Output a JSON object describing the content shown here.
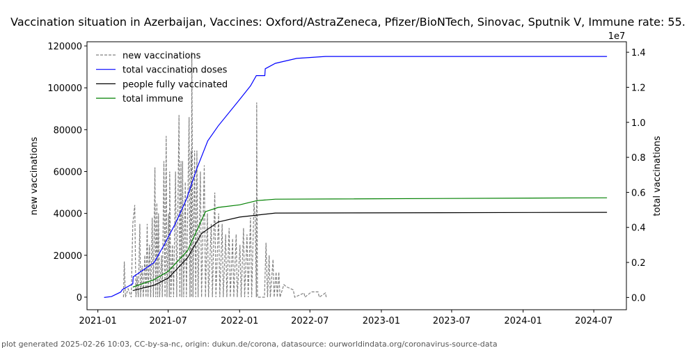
{
  "chart_data": {
    "type": "line",
    "title": "Vaccination situation in Azerbaijan, Vaccines: Oxford/AstraZeneca, Pfizer/BioNTech, Sinovac, Sputnik V, Immune rate: 55.",
    "xlabel": "",
    "ylabel_left": "new vaccinations",
    "ylabel_right": "total vaccinations",
    "right_axis_multiplier": "1e7",
    "ylim_left": [
      -6000,
      122000
    ],
    "ylim_right": [
      -700000,
      14600000
    ],
    "xlim": [
      "2020-12-04",
      "2024-09-23"
    ],
    "x_ticks": [
      "2021-01",
      "2021-07",
      "2022-01",
      "2022-07",
      "2023-01",
      "2023-07",
      "2024-01",
      "2024-07"
    ],
    "y_ticks_left": [
      "0",
      "20000",
      "40000",
      "60000",
      "80000",
      "100000",
      "120000"
    ],
    "y_ticks_right": [
      "0.0",
      "0.2",
      "0.4",
      "0.6",
      "0.8",
      "1.0",
      "1.2",
      "1.4"
    ],
    "grid": false,
    "legend": "top-left",
    "legend_entries": [
      "new vaccinations",
      "total vaccination doses",
      "people fully vaccinated",
      "total immune"
    ],
    "series": [
      {
        "name": "new vaccinations",
        "axis": "left",
        "color": "#808080",
        "style": "dashed",
        "points": [
          [
            "2021-03-08",
            0
          ],
          [
            "2021-03-10",
            17000
          ],
          [
            "2021-03-13",
            0
          ],
          [
            "2021-03-20",
            4000
          ],
          [
            "2021-03-28",
            0
          ],
          [
            "2021-04-01",
            35000
          ],
          [
            "2021-04-06",
            44000
          ],
          [
            "2021-04-09",
            0
          ],
          [
            "2021-04-12",
            10000
          ],
          [
            "2021-04-15",
            0
          ],
          [
            "2021-04-19",
            35000
          ],
          [
            "2021-04-21",
            0
          ],
          [
            "2021-04-25",
            15000
          ],
          [
            "2021-04-28",
            0
          ],
          [
            "2021-05-02",
            20000
          ],
          [
            "2021-05-05",
            0
          ],
          [
            "2021-05-08",
            35000
          ],
          [
            "2021-05-10",
            0
          ],
          [
            "2021-05-14",
            25000
          ],
          [
            "2021-05-17",
            0
          ],
          [
            "2021-05-21",
            38000
          ],
          [
            "2021-05-24",
            0
          ],
          [
            "2021-05-28",
            62000
          ],
          [
            "2021-05-30",
            0
          ],
          [
            "2021-06-02",
            45000
          ],
          [
            "2021-06-04",
            0
          ],
          [
            "2021-06-06",
            40000
          ],
          [
            "2021-06-09",
            0
          ],
          [
            "2021-06-14",
            20000
          ],
          [
            "2021-06-16",
            0
          ],
          [
            "2021-06-20",
            65000
          ],
          [
            "2021-06-23",
            0
          ],
          [
            "2021-06-26",
            77000
          ],
          [
            "2021-06-28",
            0
          ],
          [
            "2021-07-02",
            40000
          ],
          [
            "2021-07-04",
            0
          ],
          [
            "2021-07-05",
            60000
          ],
          [
            "2021-07-08",
            0
          ],
          [
            "2021-07-12",
            25000
          ],
          [
            "2021-07-15",
            0
          ],
          [
            "2021-07-20",
            60000
          ],
          [
            "2021-07-23",
            0
          ],
          [
            "2021-07-29",
            87000
          ],
          [
            "2021-07-31",
            0
          ],
          [
            "2021-08-03",
            65000
          ],
          [
            "2021-08-05",
            0
          ],
          [
            "2021-08-07",
            65000
          ],
          [
            "2021-08-10",
            0
          ],
          [
            "2021-08-14",
            55000
          ],
          [
            "2021-08-17",
            0
          ],
          [
            "2021-08-24",
            86000
          ],
          [
            "2021-08-26",
            0
          ],
          [
            "2021-08-29",
            70000
          ],
          [
            "2021-08-30",
            0
          ],
          [
            "2021-08-31",
            117000
          ],
          [
            "2021-09-03",
            0
          ],
          [
            "2021-09-07",
            70000
          ],
          [
            "2021-09-10",
            0
          ],
          [
            "2021-09-13",
            70000
          ],
          [
            "2021-09-16",
            0
          ],
          [
            "2021-09-22",
            60000
          ],
          [
            "2021-09-25",
            0
          ],
          [
            "2021-10-02",
            63000
          ],
          [
            "2021-10-05",
            0
          ],
          [
            "2021-10-10",
            40000
          ],
          [
            "2021-10-13",
            0
          ],
          [
            "2021-10-20",
            35000
          ],
          [
            "2021-10-23",
            0
          ],
          [
            "2021-10-29",
            50000
          ],
          [
            "2021-11-01",
            0
          ],
          [
            "2021-11-08",
            40000
          ],
          [
            "2021-11-11",
            0
          ],
          [
            "2021-11-17",
            35000
          ],
          [
            "2021-11-20",
            0
          ],
          [
            "2021-11-26",
            30000
          ],
          [
            "2021-11-29",
            0
          ],
          [
            "2021-12-05",
            33000
          ],
          [
            "2021-12-08",
            0
          ],
          [
            "2021-12-14",
            28000
          ],
          [
            "2021-12-17",
            0
          ],
          [
            "2021-12-23",
            30000
          ],
          [
            "2021-12-26",
            0
          ],
          [
            "2022-01-02",
            25000
          ],
          [
            "2022-01-05",
            0
          ],
          [
            "2022-01-11",
            33000
          ],
          [
            "2022-01-14",
            0
          ],
          [
            "2022-01-20",
            30000
          ],
          [
            "2022-01-23",
            0
          ],
          [
            "2022-01-29",
            38000
          ],
          [
            "2022-02-01",
            0
          ],
          [
            "2022-02-07",
            45000
          ],
          [
            "2022-02-10",
            38000
          ],
          [
            "2022-02-13",
            0
          ],
          [
            "2022-02-14",
            93000
          ],
          [
            "2022-02-16",
            0
          ],
          [
            "2022-03-06",
            0
          ],
          [
            "2022-03-10",
            26000
          ],
          [
            "2022-03-14",
            0
          ],
          [
            "2022-03-18",
            20000
          ],
          [
            "2022-03-21",
            0
          ],
          [
            "2022-03-28",
            18000
          ],
          [
            "2022-03-31",
            0
          ],
          [
            "2022-04-05",
            12000
          ],
          [
            "2022-04-08",
            0
          ],
          [
            "2022-04-12",
            12000
          ],
          [
            "2022-04-15",
            0
          ],
          [
            "2022-04-25",
            6000
          ],
          [
            "2022-05-01",
            5000
          ],
          [
            "2022-05-19",
            3500
          ],
          [
            "2022-05-23",
            0
          ],
          [
            "2022-06-16",
            2000
          ],
          [
            "2022-06-18",
            0
          ],
          [
            "2022-07-05",
            2500
          ],
          [
            "2022-07-22",
            2500
          ],
          [
            "2022-07-25",
            0
          ],
          [
            "2022-08-10",
            2000
          ],
          [
            "2022-08-12",
            0
          ]
        ]
      },
      {
        "name": "total vaccination doses",
        "axis": "right",
        "color": "#0000ff",
        "style": "solid",
        "points": [
          [
            "2021-01-17",
            0
          ],
          [
            "2021-02-05",
            50000
          ],
          [
            "2021-03-01",
            310000
          ],
          [
            "2021-03-05",
            450000
          ],
          [
            "2021-04-01",
            780000
          ],
          [
            "2021-04-02",
            1180000
          ],
          [
            "2021-04-28",
            1570000
          ],
          [
            "2021-05-26",
            2000000
          ],
          [
            "2021-06-22",
            3060000
          ],
          [
            "2021-07-20",
            4240000
          ],
          [
            "2021-08-17",
            5600000
          ],
          [
            "2021-09-13",
            7370000
          ],
          [
            "2021-10-11",
            8940000
          ],
          [
            "2021-11-07",
            9800000
          ],
          [
            "2022-01-01",
            11300000
          ],
          [
            "2022-01-29",
            12080000
          ],
          [
            "2022-02-13",
            12670000
          ],
          [
            "2022-03-07",
            12670000
          ],
          [
            "2022-03-08",
            13060000
          ],
          [
            "2022-04-03",
            13370000
          ],
          [
            "2022-05-28",
            13650000
          ],
          [
            "2022-08-10",
            13760000
          ],
          [
            "2024-08-04",
            13760000
          ]
        ]
      },
      {
        "name": "people fully vaccinated",
        "axis": "right",
        "color": "#000000",
        "style": "solid",
        "points": [
          [
            "2021-04-01",
            390000
          ],
          [
            "2021-05-26",
            700000
          ],
          [
            "2021-07-01",
            1100000
          ],
          [
            "2021-08-20",
            2270000
          ],
          [
            "2021-09-25",
            3650000
          ],
          [
            "2021-11-07",
            4310000
          ],
          [
            "2022-01-01",
            4590000
          ],
          [
            "2022-04-03",
            4820000
          ],
          [
            "2024-08-04",
            4860000
          ]
        ]
      },
      {
        "name": "total immune",
        "axis": "right",
        "color": "#008000",
        "style": "solid",
        "points": [
          [
            "2021-04-01",
            590000
          ],
          [
            "2021-05-26",
            1020000
          ],
          [
            "2021-07-01",
            1490000
          ],
          [
            "2021-08-20",
            2670000
          ],
          [
            "2021-10-05",
            4900000
          ],
          [
            "2021-11-07",
            5140000
          ],
          [
            "2022-01-01",
            5290000
          ],
          [
            "2022-02-15",
            5530000
          ],
          [
            "2022-04-03",
            5610000
          ],
          [
            "2024-08-04",
            5690000
          ]
        ]
      }
    ]
  },
  "footer": "plot generated 2025-02-26 10:03, CC-by-sa-nc, origin: dukun.de/corona, datasource: ourworldindata.org/coronavirus-source-data"
}
